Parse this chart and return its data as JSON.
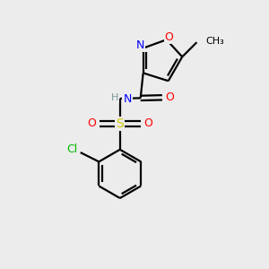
{
  "background_color": "#ececec",
  "atom_colors": {
    "O": "#ff0000",
    "N": "#0000ff",
    "S": "#cccc00",
    "Cl": "#00bb00",
    "C": "#000000",
    "H": "#7a9a9a"
  },
  "figsize": [
    3.0,
    3.0
  ],
  "dpi": 100,
  "lw": 1.6,
  "sep": 0.09,
  "fs": 9
}
